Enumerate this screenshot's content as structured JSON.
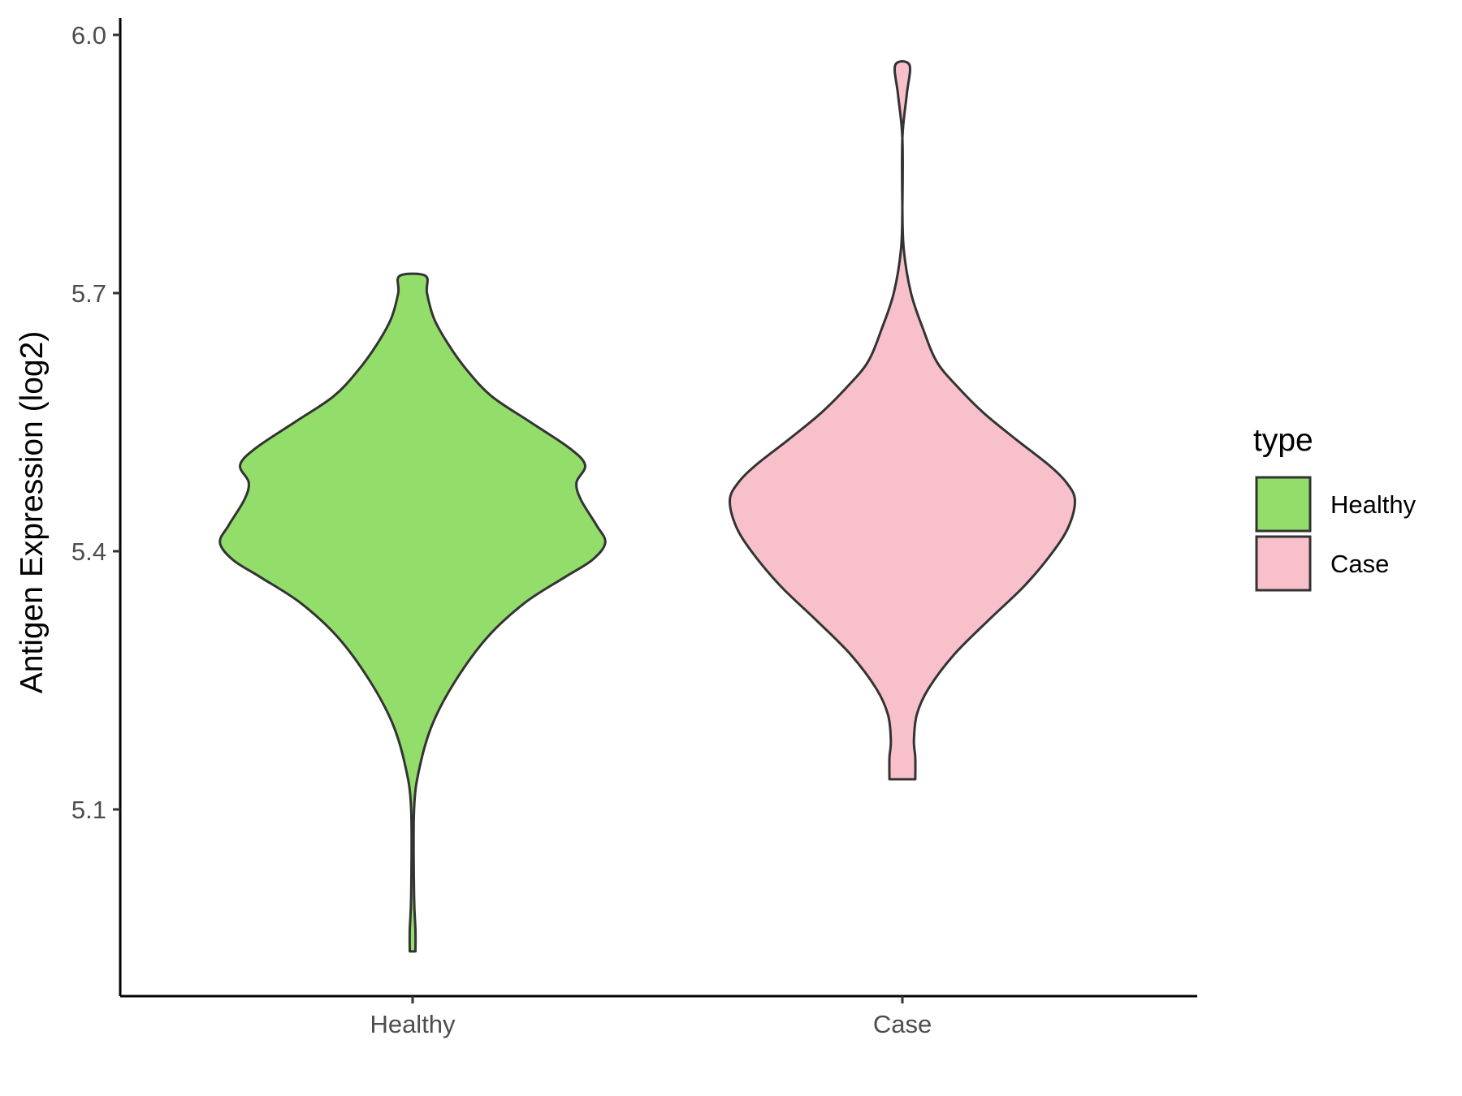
{
  "chart_data": {
    "type": "violin",
    "xlabel": "",
    "ylabel": "Antigen Expression (log2)",
    "categories": [
      "Healthy",
      "Case"
    ],
    "ylim": [
      4.87,
      6.03
    ],
    "yticks": [
      5.1,
      5.4,
      5.7,
      6.0
    ],
    "ytick_labels": [
      "5.1",
      "5.4",
      "5.7",
      "6.0"
    ],
    "grid": false,
    "legend": {
      "title": "type",
      "position": "right",
      "entries": [
        {
          "label": "Healthy",
          "color": "#93dd6a"
        },
        {
          "label": "Case",
          "color": "#f8c0cb"
        }
      ]
    },
    "series": [
      {
        "category": "Healthy",
        "color": "#93dd6a",
        "min": 4.935,
        "max": 5.72,
        "density_profile": [
          {
            "y": 4.935,
            "hw": 0.02
          },
          {
            "y": 4.96,
            "hw": 0.02
          },
          {
            "y": 5.0,
            "hw": 0.01
          },
          {
            "y": 5.1,
            "hw": 0.01
          },
          {
            "y": 5.15,
            "hw": 0.05
          },
          {
            "y": 5.2,
            "hw": 0.14
          },
          {
            "y": 5.25,
            "hw": 0.3
          },
          {
            "y": 5.3,
            "hw": 0.52
          },
          {
            "y": 5.34,
            "hw": 0.78
          },
          {
            "y": 5.37,
            "hw": 1.06
          },
          {
            "y": 5.39,
            "hw": 1.25
          },
          {
            "y": 5.41,
            "hw": 1.34
          },
          {
            "y": 5.43,
            "hw": 1.28
          },
          {
            "y": 5.46,
            "hw": 1.17
          },
          {
            "y": 5.48,
            "hw": 1.14
          },
          {
            "y": 5.5,
            "hw": 1.2
          },
          {
            "y": 5.52,
            "hw": 1.09
          },
          {
            "y": 5.55,
            "hw": 0.82
          },
          {
            "y": 5.58,
            "hw": 0.55
          },
          {
            "y": 5.61,
            "hw": 0.38
          },
          {
            "y": 5.64,
            "hw": 0.25
          },
          {
            "y": 5.67,
            "hw": 0.15
          },
          {
            "y": 5.7,
            "hw": 0.1
          },
          {
            "y": 5.72,
            "hw": 0.09
          }
        ]
      },
      {
        "category": "Case",
        "color": "#f8c0cb",
        "min": 5.135,
        "max": 5.965,
        "density_profile": [
          {
            "y": 5.135,
            "hw": 0.09
          },
          {
            "y": 5.16,
            "hw": 0.09
          },
          {
            "y": 5.18,
            "hw": 0.08
          },
          {
            "y": 5.21,
            "hw": 0.1
          },
          {
            "y": 5.24,
            "hw": 0.18
          },
          {
            "y": 5.28,
            "hw": 0.36
          },
          {
            "y": 5.32,
            "hw": 0.6
          },
          {
            "y": 5.36,
            "hw": 0.85
          },
          {
            "y": 5.4,
            "hw": 1.05
          },
          {
            "y": 5.43,
            "hw": 1.16
          },
          {
            "y": 5.46,
            "hw": 1.2
          },
          {
            "y": 5.48,
            "hw": 1.14
          },
          {
            "y": 5.5,
            "hw": 1.02
          },
          {
            "y": 5.53,
            "hw": 0.79
          },
          {
            "y": 5.56,
            "hw": 0.57
          },
          {
            "y": 5.59,
            "hw": 0.39
          },
          {
            "y": 5.62,
            "hw": 0.24
          },
          {
            "y": 5.66,
            "hw": 0.14
          },
          {
            "y": 5.7,
            "hw": 0.06
          },
          {
            "y": 5.75,
            "hw": 0.01
          },
          {
            "y": 5.8,
            "hw": 0.0
          },
          {
            "y": 5.88,
            "hw": 0.0
          },
          {
            "y": 5.93,
            "hw": 0.03
          },
          {
            "y": 5.965,
            "hw": 0.05
          }
        ]
      }
    ]
  }
}
